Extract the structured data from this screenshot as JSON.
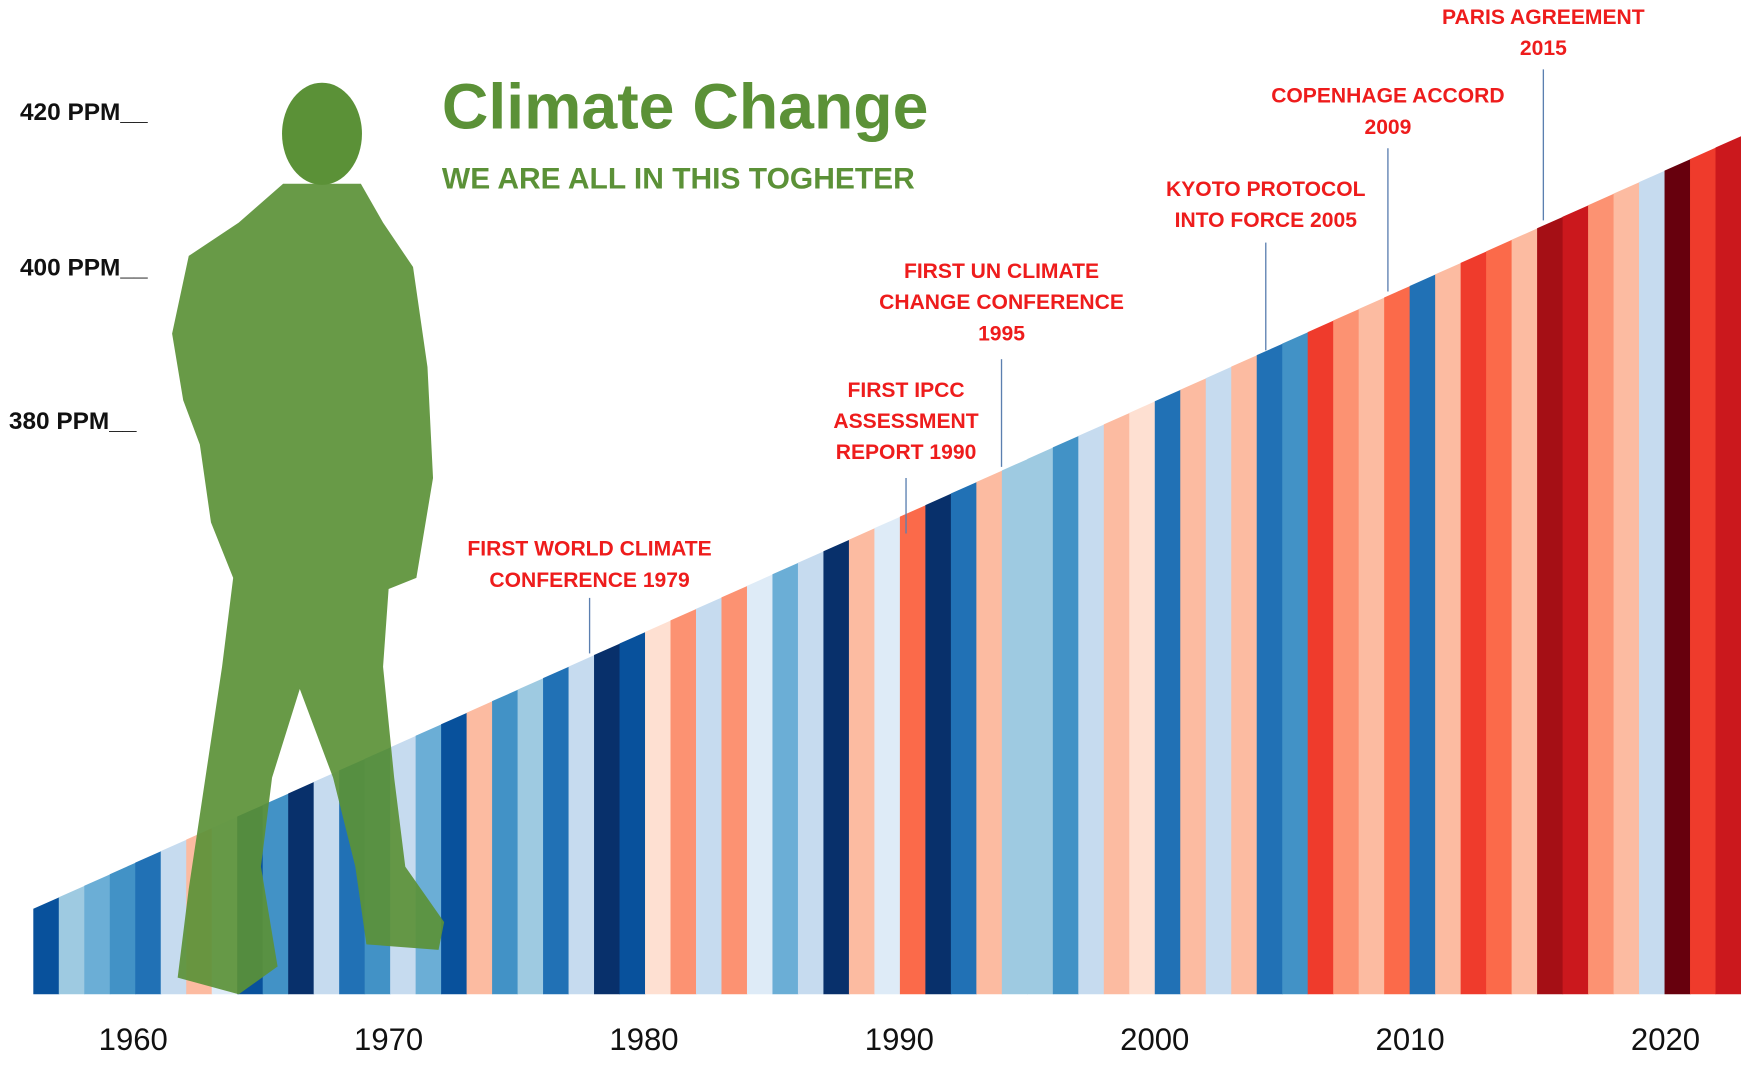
{
  "title": "Climate Change",
  "subtitle": "WE ARE ALL IN THIS TOGHETER",
  "ppm_labels": [
    "420 PPM__",
    "400 PPM__",
    "380 PPM__"
  ],
  "years": [
    "1960",
    "1970",
    "1980",
    "1990",
    "2000",
    "2010",
    "2020"
  ],
  "events": [
    {
      "lines": [
        "FIRST WORLD CLIMATE",
        "CONFERENCE 1979"
      ]
    },
    {
      "lines": [
        "FIRST IPCC",
        "ASSESSMENT",
        "REPORT 1990"
      ]
    },
    {
      "lines": [
        "FIRST UN CLIMATE",
        "CHANGE CONFERENCE",
        "1995"
      ]
    },
    {
      "lines": [
        "KYOTO PROTOCOL",
        "INTO FORCE 2005"
      ]
    },
    {
      "lines": [
        "COPENHAGE ACCORD",
        "2009"
      ]
    },
    {
      "lines": [
        "PARIS AGREEMENT",
        "2015"
      ]
    }
  ],
  "stripe_colors": [
    "#08519c",
    "#9ecae1",
    "#6baed6",
    "#4292c6",
    "#2171b5",
    "#c6dbef",
    "#fcbba1",
    "#deebf7",
    "#08519c",
    "#4292c6",
    "#08306b",
    "#c6dbef",
    "#2171b5",
    "#4292c6",
    "#c6dbef",
    "#6baed6",
    "#08519c",
    "#fcbba1",
    "#4292c6",
    "#9ecae1",
    "#2171b5",
    "#c6dbef",
    "#08306b",
    "#08519c",
    "#fee0d2",
    "#fc9272",
    "#c6dbef",
    "#fc9272",
    "#deebf7",
    "#6baed6",
    "#c6dbef",
    "#08306b",
    "#fcbba1",
    "#deebf7",
    "#fb6a4a",
    "#08306b",
    "#2171b5",
    "#fcbba1",
    "#9ecae1",
    "#9ecae1",
    "#4292c6",
    "#c6dbef",
    "#fcbba1",
    "#fee0d2",
    "#2171b5",
    "#fcbba1",
    "#c6dbef",
    "#fcbba1",
    "#2171b5",
    "#4292c6",
    "#ef3b2c",
    "#fc9272",
    "#fcbba1",
    "#fb6a4a",
    "#2171b5",
    "#fcbba1",
    "#ef3b2c",
    "#fb6a4a",
    "#fcbba1",
    "#a50f15",
    "#cb181d",
    "#fc9272",
    "#fcbba1",
    "#c6dbef",
    "#67000d",
    "#ef3b2c",
    "#cb181d"
  ],
  "figure_color": "#5b9137"
}
